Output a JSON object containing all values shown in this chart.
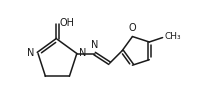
{
  "background": "#ffffff",
  "line_color": "#1a1a1a",
  "line_width": 1.1,
  "font_size": 7.0,
  "figsize": [
    2.23,
    1.09
  ],
  "dpi": 100,
  "xlim": [
    0.0,
    12.5
  ],
  "ylim": [
    2.5,
    8.5
  ]
}
